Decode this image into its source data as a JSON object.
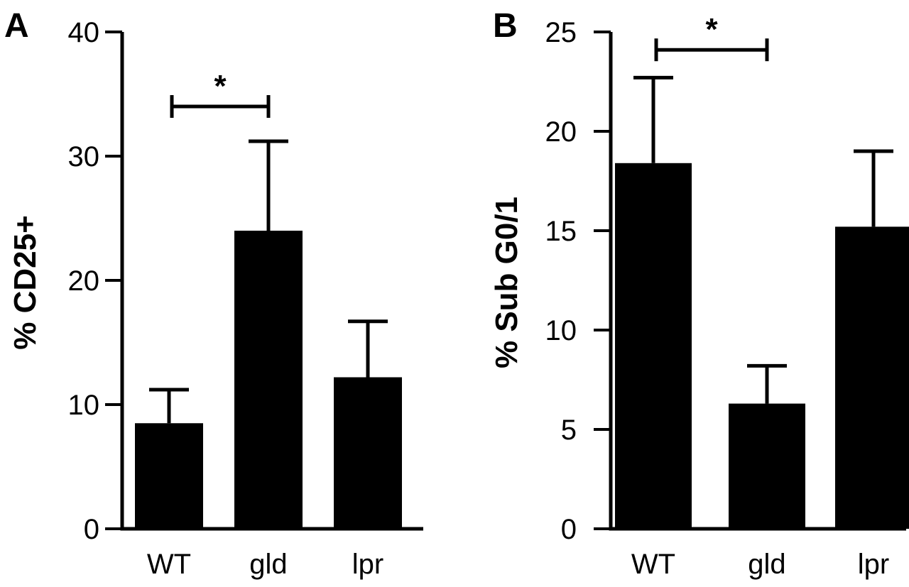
{
  "chart_data": [
    {
      "panel": "A",
      "type": "bar",
      "categories": [
        "WT",
        "gld",
        "lpr"
      ],
      "values": [
        8.5,
        24.0,
        12.2
      ],
      "error_upper": [
        11.2,
        31.2,
        16.7
      ],
      "ylabel": "% CD25+",
      "ylim": [
        0,
        40
      ],
      "yticks": [
        "0",
        "10",
        "20",
        "30",
        "40"
      ],
      "bar_color": "#000000",
      "significance": {
        "from": "WT",
        "to": "gld",
        "label": "*",
        "level": 34
      }
    },
    {
      "panel": "B",
      "type": "bar",
      "categories": [
        "WT",
        "gld",
        "lpr"
      ],
      "values": [
        18.4,
        6.3,
        15.2
      ],
      "error_upper": [
        22.7,
        8.2,
        19.0
      ],
      "ylabel": "% Sub G0/1",
      "ylim": [
        0,
        25
      ],
      "yticks": [
        "0",
        "5",
        "10",
        "15",
        "20",
        "25"
      ],
      "bar_color": "#000000",
      "significance": {
        "from": "WT",
        "to": "gld",
        "label": "*",
        "level": 24.1
      }
    }
  ]
}
